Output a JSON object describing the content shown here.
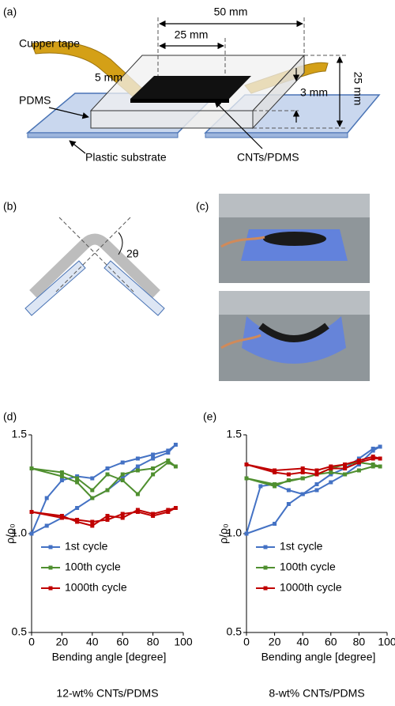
{
  "figure": {
    "a": {
      "label": "(a)",
      "dim_50": "50 mm",
      "dim_25": "25 mm",
      "tape": "Cupper tape",
      "dim_5": "5 mm",
      "pdms": "PDMS",
      "dim_3": "3 mm",
      "dim_25_side": "25 mm",
      "substrate": "Plastic substrate",
      "cnt": "CNTs/PDMS"
    },
    "b": {
      "label": "(b)",
      "angle": "2θ"
    },
    "c": {
      "label": "(c)"
    }
  },
  "chart_data": [
    {
      "type": "line",
      "label": "(d)",
      "caption": "12-wt% CNTs/PDMS",
      "x_label": "Bending angle [degree]",
      "y_label": "ρ/ρ₀",
      "xlim": [
        0,
        100
      ],
      "xticks": [
        0,
        20,
        40,
        60,
        80,
        100
      ],
      "ylim": [
        0.5,
        1.5
      ],
      "yticks": [
        1.5,
        {
          "value": 1,
          "label": "1.0"
        },
        0.5
      ],
      "legend": "lower-left",
      "series": [
        {
          "name": "1st cycle",
          "color": "#4472c4",
          "x": [
            0,
            10,
            20,
            30,
            40,
            50,
            60,
            70,
            80,
            90,
            95,
            90,
            80,
            70,
            60,
            50,
            40,
            30,
            20,
            10,
            0
          ],
          "values": [
            1.0,
            1.18,
            1.27,
            1.29,
            1.28,
            1.33,
            1.36,
            1.38,
            1.4,
            1.42,
            1.45,
            1.41,
            1.38,
            1.34,
            1.28,
            1.22,
            1.18,
            1.13,
            1.08,
            1.04,
            1.0
          ]
        },
        {
          "name": "100th cycle",
          "color": "#4f8f2f",
          "x": [
            0,
            20,
            30,
            40,
            50,
            60,
            70,
            80,
            90,
            95,
            90,
            80,
            70,
            60,
            50,
            40,
            30,
            20,
            0
          ],
          "values": [
            1.33,
            1.31,
            1.28,
            1.22,
            1.3,
            1.27,
            1.2,
            1.3,
            1.36,
            1.34,
            1.37,
            1.33,
            1.32,
            1.3,
            1.22,
            1.18,
            1.26,
            1.29,
            1.33
          ]
        },
        {
          "name": "1000th cycle",
          "color": "#c00000",
          "x": [
            0,
            20,
            30,
            40,
            50,
            60,
            70,
            80,
            90,
            95,
            90,
            80,
            70,
            60,
            50,
            40,
            30,
            20,
            0
          ],
          "values": [
            1.11,
            1.09,
            1.06,
            1.04,
            1.09,
            1.08,
            1.12,
            1.1,
            1.12,
            1.13,
            1.11,
            1.09,
            1.11,
            1.1,
            1.07,
            1.06,
            1.07,
            1.08,
            1.11
          ]
        }
      ]
    },
    {
      "type": "line",
      "label": "(e)",
      "caption": "8-wt% CNTs/PDMS",
      "x_label": "Bending angle [degree]",
      "y_label": "ρ/ρ₀",
      "xlim": [
        0,
        100
      ],
      "xticks": [
        0,
        20,
        40,
        60,
        80,
        100
      ],
      "ylim": [
        0.5,
        1.5
      ],
      "yticks": [
        1.5,
        {
          "value": 1,
          "label": "1.0"
        },
        0.5
      ],
      "legend": "lower-left",
      "series": [
        {
          "name": "1st cycle",
          "color": "#4472c4",
          "x": [
            0,
            20,
            30,
            40,
            50,
            60,
            70,
            80,
            90,
            95,
            90,
            80,
            70,
            60,
            50,
            40,
            30,
            20,
            10,
            0
          ],
          "values": [
            1.0,
            1.05,
            1.15,
            1.2,
            1.25,
            1.3,
            1.33,
            1.38,
            1.43,
            1.44,
            1.42,
            1.35,
            1.3,
            1.26,
            1.22,
            1.2,
            1.22,
            1.25,
            1.24,
            1.0
          ]
        },
        {
          "name": "100th cycle",
          "color": "#4f8f2f",
          "x": [
            0,
            20,
            30,
            40,
            50,
            60,
            70,
            80,
            90,
            95,
            90,
            80,
            70,
            60,
            50,
            40,
            20,
            0
          ],
          "values": [
            1.28,
            1.24,
            1.27,
            1.28,
            1.3,
            1.31,
            1.3,
            1.32,
            1.34,
            1.34,
            1.35,
            1.36,
            1.35,
            1.33,
            1.3,
            1.28,
            1.25,
            1.28
          ]
        },
        {
          "name": "1000th cycle",
          "color": "#c00000",
          "x": [
            0,
            20,
            30,
            40,
            50,
            60,
            70,
            80,
            90,
            95,
            90,
            80,
            70,
            60,
            50,
            40,
            20,
            0
          ],
          "values": [
            1.35,
            1.31,
            1.3,
            1.31,
            1.3,
            1.33,
            1.33,
            1.36,
            1.38,
            1.38,
            1.39,
            1.37,
            1.35,
            1.34,
            1.32,
            1.33,
            1.32,
            1.35
          ]
        }
      ]
    }
  ]
}
